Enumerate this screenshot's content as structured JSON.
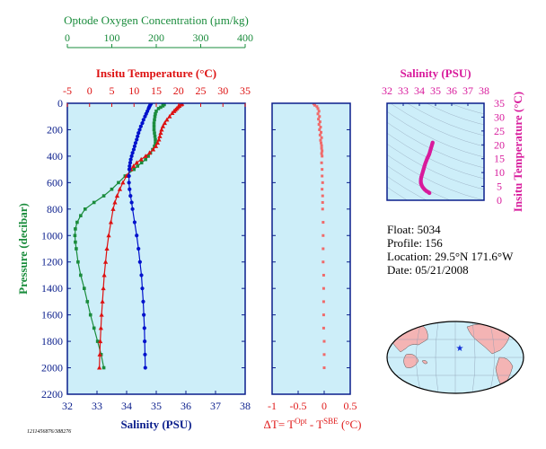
{
  "float_info": {
    "float": "Float:  5034",
    "profile": "Profile:  156",
    "location": "Location:  29.5°N  171.6°W",
    "date": "Date:  05/21/2008"
  },
  "footer_id": "1211456876/388276",
  "colors": {
    "panel_bg": "#cdeef9",
    "oxygen": "#1a8c3c",
    "temperature": "#dd1111",
    "salinity": "#0011cc",
    "delta_t": "#f06a6a",
    "ts": "#d81b9c",
    "axis_blue": "#0a1e8c",
    "map_land": "#f4b4b4",
    "map_ocean": "#cdeef9"
  },
  "chart_data": [
    {
      "id": "main_profile",
      "type": "scatter",
      "ylabel": "Pressure (decibar)",
      "ylim": [
        2200,
        0
      ],
      "yticks": [
        0,
        200,
        400,
        600,
        800,
        1000,
        1200,
        1400,
        1600,
        1800,
        2000,
        2200
      ],
      "axes": {
        "oxygen": {
          "label": "Optode Oxygen Concentration (µm/kg)",
          "lim": [
            0,
            400
          ],
          "ticks": [
            0,
            100,
            200,
            300,
            400
          ]
        },
        "temperature": {
          "label": "Insitu Temperature (°C)",
          "lim": [
            -5,
            35
          ],
          "ticks": [
            -5,
            0,
            5,
            10,
            15,
            20,
            25,
            30,
            35
          ]
        },
        "salinity": {
          "label": "Salinity (PSU)",
          "lim": [
            32,
            38
          ],
          "ticks": [
            32,
            33,
            34,
            35,
            36,
            37,
            38
          ]
        }
      },
      "series": [
        {
          "name": "Optode Oxygen Concentration (µm/kg)",
          "axis": "oxygen",
          "marker": "square",
          "points": [
            [
              5,
              215
            ],
            [
              10,
              218
            ],
            [
              20,
              215
            ],
            [
              30,
              210
            ],
            [
              40,
              205
            ],
            [
              60,
              200
            ],
            [
              80,
              198
            ],
            [
              100,
              197
            ],
            [
              125,
              196
            ],
            [
              150,
              195
            ],
            [
              175,
              195
            ],
            [
              200,
              195
            ],
            [
              225,
              196
            ],
            [
              250,
              197
            ],
            [
              275,
              198
            ],
            [
              300,
              198
            ],
            [
              325,
              196
            ],
            [
              350,
              192
            ],
            [
              375,
              187
            ],
            [
              400,
              182
            ],
            [
              425,
              176
            ],
            [
              450,
              167
            ],
            [
              475,
              158
            ],
            [
              500,
              150
            ],
            [
              550,
              130
            ],
            [
              600,
              115
            ],
            [
              650,
              100
            ],
            [
              700,
              82
            ],
            [
              750,
              60
            ],
            [
              800,
              40
            ],
            [
              850,
              30
            ],
            [
              900,
              22
            ],
            [
              950,
              18
            ],
            [
              1000,
              17
            ],
            [
              1050,
              18
            ],
            [
              1100,
              20
            ],
            [
              1200,
              24
            ],
            [
              1300,
              30
            ],
            [
              1400,
              38
            ],
            [
              1500,
              45
            ],
            [
              1600,
              52
            ],
            [
              1700,
              60
            ],
            [
              1800,
              68
            ],
            [
              1900,
              76
            ],
            [
              2000,
              82
            ]
          ]
        },
        {
          "name": "Insitu Temperature (°C)",
          "axis": "temperature",
          "marker": "triangle",
          "points": [
            [
              5,
              20.8
            ],
            [
              10,
              20.6
            ],
            [
              20,
              20.2
            ],
            [
              30,
              19.9
            ],
            [
              40,
              19.6
            ],
            [
              50,
              19.3
            ],
            [
              60,
              19.0
            ],
            [
              75,
              18.6
            ],
            [
              100,
              18.0
            ],
            [
              125,
              17.4
            ],
            [
              150,
              16.9
            ],
            [
              175,
              16.5
            ],
            [
              200,
              16.2
            ],
            [
              225,
              16.0
            ],
            [
              250,
              15.8
            ],
            [
              275,
              15.6
            ],
            [
              300,
              15.3
            ],
            [
              325,
              14.9
            ],
            [
              350,
              14.3
            ],
            [
              375,
              13.5
            ],
            [
              400,
              12.6
            ],
            [
              425,
              11.6
            ],
            [
              450,
              10.6
            ],
            [
              475,
              9.9
            ],
            [
              500,
              9.3
            ],
            [
              550,
              8.3
            ],
            [
              600,
              7.5
            ],
            [
              650,
              6.8
            ],
            [
              700,
              6.2
            ],
            [
              750,
              5.7
            ],
            [
              800,
              5.3
            ],
            [
              900,
              4.8
            ],
            [
              1000,
              4.3
            ],
            [
              1100,
              3.9
            ],
            [
              1200,
              3.6
            ],
            [
              1300,
              3.3
            ],
            [
              1400,
              3.1
            ],
            [
              1500,
              2.9
            ],
            [
              1600,
              2.7
            ],
            [
              1700,
              2.55
            ],
            [
              1800,
              2.4
            ],
            [
              1900,
              2.3
            ],
            [
              2000,
              2.2
            ]
          ]
        },
        {
          "name": "Salinity (PSU)",
          "axis": "salinity",
          "marker": "circle",
          "points": [
            [
              5,
              34.82
            ],
            [
              10,
              34.8
            ],
            [
              20,
              34.78
            ],
            [
              30,
              34.76
            ],
            [
              40,
              34.74
            ],
            [
              60,
              34.7
            ],
            [
              80,
              34.66
            ],
            [
              100,
              34.62
            ],
            [
              125,
              34.57
            ],
            [
              150,
              34.53
            ],
            [
              175,
              34.48
            ],
            [
              200,
              34.44
            ],
            [
              225,
              34.4
            ],
            [
              250,
              34.37
            ],
            [
              275,
              34.34
            ],
            [
              300,
              34.3
            ],
            [
              325,
              34.27
            ],
            [
              350,
              34.24
            ],
            [
              375,
              34.2
            ],
            [
              400,
              34.17
            ],
            [
              425,
              34.14
            ],
            [
              450,
              34.12
            ],
            [
              475,
              34.1
            ],
            [
              500,
              34.09
            ],
            [
              550,
              34.08
            ],
            [
              600,
              34.08
            ],
            [
              650,
              34.1
            ],
            [
              700,
              34.13
            ],
            [
              750,
              34.17
            ],
            [
              800,
              34.2
            ],
            [
              900,
              34.27
            ],
            [
              1000,
              34.34
            ],
            [
              1100,
              34.4
            ],
            [
              1200,
              34.45
            ],
            [
              1300,
              34.5
            ],
            [
              1400,
              34.53
            ],
            [
              1500,
              34.56
            ],
            [
              1600,
              34.58
            ],
            [
              1700,
              34.6
            ],
            [
              1800,
              34.61
            ],
            [
              1900,
              34.62
            ],
            [
              2000,
              34.63
            ]
          ]
        }
      ]
    },
    {
      "id": "delta_t",
      "type": "scatter",
      "xlabel": "ΔT= T",
      "xlabel_sup1": "Opt",
      "xlabel_mid": " - T",
      "xlabel_sup2": "SBE",
      "xlabel_unit": " (°C)",
      "xlim": [
        -1.0,
        0.5
      ],
      "xticks": [
        -1.0,
        -0.5,
        0.0,
        0.5
      ],
      "ylim": [
        2200,
        0
      ],
      "points": [
        [
          5,
          -0.2
        ],
        [
          15,
          -0.18
        ],
        [
          25,
          -0.14
        ],
        [
          40,
          -0.12
        ],
        [
          60,
          -0.1
        ],
        [
          80,
          -0.12
        ],
        [
          100,
          -0.09
        ],
        [
          120,
          -0.11
        ],
        [
          140,
          -0.08
        ],
        [
          160,
          -0.1
        ],
        [
          180,
          -0.07
        ],
        [
          200,
          -0.09
        ],
        [
          220,
          -0.06
        ],
        [
          240,
          -0.08
        ],
        [
          260,
          -0.05
        ],
        [
          280,
          -0.07
        ],
        [
          300,
          -0.06
        ],
        [
          320,
          -0.05
        ],
        [
          340,
          -0.05
        ],
        [
          360,
          -0.04
        ],
        [
          380,
          -0.05
        ],
        [
          400,
          -0.04
        ],
        [
          450,
          -0.05
        ],
        [
          500,
          -0.04
        ],
        [
          550,
          -0.04
        ],
        [
          600,
          -0.03
        ],
        [
          650,
          -0.04
        ],
        [
          700,
          -0.03
        ],
        [
          750,
          -0.03
        ],
        [
          800,
          -0.03
        ],
        [
          900,
          -0.02
        ],
        [
          1000,
          -0.02
        ],
        [
          1100,
          -0.02
        ],
        [
          1200,
          -0.02
        ],
        [
          1300,
          -0.01
        ],
        [
          1400,
          -0.01
        ],
        [
          1500,
          -0.01
        ],
        [
          1600,
          -0.01
        ],
        [
          1700,
          -0.01
        ],
        [
          1800,
          0.0
        ],
        [
          1900,
          0.0
        ],
        [
          2000,
          0.0
        ]
      ]
    },
    {
      "id": "ts_diagram",
      "type": "scatter",
      "xlabel": "Salinity (PSU)",
      "ylabel": "Insitu Temperature (°C)",
      "xlim": [
        32,
        38
      ],
      "xticks": [
        32,
        33,
        34,
        35,
        36,
        37,
        38
      ],
      "ylim": [
        0,
        35
      ],
      "yticks": [
        0,
        5,
        10,
        15,
        20,
        25,
        30,
        35
      ],
      "points": [
        [
          34.82,
          20.8
        ],
        [
          34.8,
          20.4
        ],
        [
          34.78,
          20.0
        ],
        [
          34.75,
          19.4
        ],
        [
          34.72,
          18.8
        ],
        [
          34.69,
          18.2
        ],
        [
          34.66,
          17.6
        ],
        [
          34.63,
          17.0
        ],
        [
          34.6,
          16.5
        ],
        [
          34.56,
          16.0
        ],
        [
          34.52,
          15.5
        ],
        [
          34.48,
          15.0
        ],
        [
          34.44,
          14.4
        ],
        [
          34.4,
          13.8
        ],
        [
          34.36,
          13.2
        ],
        [
          34.33,
          12.6
        ],
        [
          34.3,
          12.0
        ],
        [
          34.27,
          11.4
        ],
        [
          34.24,
          10.8
        ],
        [
          34.21,
          10.2
        ],
        [
          34.18,
          9.6
        ],
        [
          34.15,
          9.0
        ],
        [
          34.12,
          8.4
        ],
        [
          34.1,
          7.8
        ],
        [
          34.09,
          7.2
        ],
        [
          34.09,
          6.6
        ],
        [
          34.1,
          6.1
        ],
        [
          34.13,
          5.6
        ],
        [
          34.17,
          5.1
        ],
        [
          34.22,
          4.6
        ],
        [
          34.28,
          4.2
        ],
        [
          34.34,
          3.8
        ],
        [
          34.42,
          3.4
        ],
        [
          34.5,
          3.1
        ],
        [
          34.58,
          2.8
        ],
        [
          34.62,
          2.6
        ]
      ]
    }
  ]
}
